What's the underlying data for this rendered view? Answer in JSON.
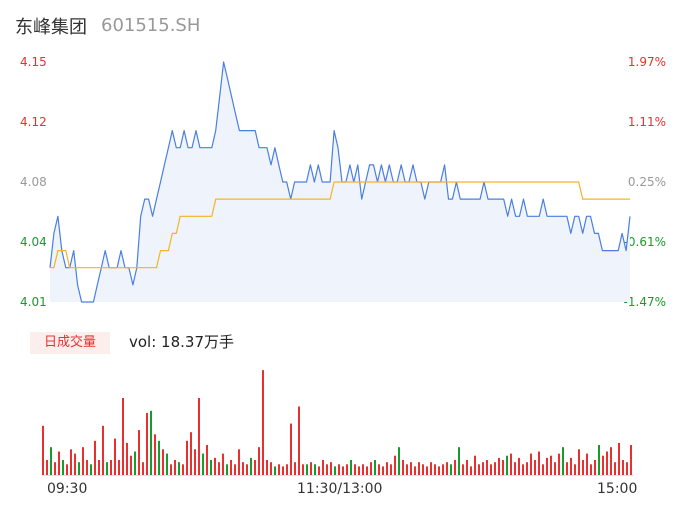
{
  "header": {
    "name": "东峰集团",
    "code": "601515.SH"
  },
  "colors": {
    "price_line": "#4a7fe0",
    "avg_line": "#f5b324",
    "up": "#e83030",
    "down": "#1a9a2a",
    "neutral": "#999999",
    "area": "#eef3fc"
  },
  "volume_panel": {
    "tag": "日成交量",
    "info": "vol: 18.37万手"
  },
  "chart_data": {
    "type": "line",
    "title": "",
    "y_left_ticks": [
      "4.15",
      "4.12",
      "4.08",
      "4.04",
      "4.01"
    ],
    "y_right_ticks": [
      "1.97%",
      "1.11%",
      "0.25%",
      "-0.61%",
      "-1.47%"
    ],
    "x_ticks": [
      "09:30",
      "11:30/13:00",
      "15:00"
    ],
    "ylim": [
      4.01,
      4.15
    ],
    "series": [
      {
        "key": "price",
        "values": [
          4.03,
          4.05,
          4.06,
          4.04,
          4.03,
          4.03,
          4.04,
          4.02,
          4.01,
          4.01,
          4.01,
          4.01,
          4.02,
          4.03,
          4.04,
          4.03,
          4.03,
          4.03,
          4.04,
          4.03,
          4.03,
          4.02,
          4.03,
          4.06,
          4.07,
          4.07,
          4.06,
          4.07,
          4.08,
          4.09,
          4.1,
          4.11,
          4.1,
          4.1,
          4.11,
          4.1,
          4.1,
          4.11,
          4.1,
          4.1,
          4.1,
          4.1,
          4.11,
          4.13,
          4.15,
          4.14,
          4.13,
          4.12,
          4.11,
          4.11,
          4.11,
          4.11,
          4.11,
          4.1,
          4.1,
          4.1,
          4.09,
          4.1,
          4.09,
          4.08,
          4.08,
          4.07,
          4.08,
          4.08,
          4.08,
          4.08,
          4.09,
          4.08,
          4.09,
          4.08,
          4.08,
          4.08,
          4.11,
          4.1,
          4.08,
          4.08,
          4.09,
          4.08,
          4.09,
          4.07,
          4.08,
          4.09,
          4.09,
          4.08,
          4.09,
          4.08,
          4.09,
          4.08,
          4.08,
          4.09,
          4.08,
          4.08,
          4.09,
          4.08,
          4.08,
          4.07,
          4.08,
          4.08,
          4.08,
          4.08,
          4.09,
          4.07,
          4.07,
          4.08,
          4.07,
          4.07,
          4.07,
          4.07,
          4.07,
          4.07,
          4.08,
          4.07,
          4.07,
          4.07,
          4.07,
          4.07,
          4.06,
          4.07,
          4.06,
          4.06,
          4.07,
          4.06,
          4.06,
          4.06,
          4.06,
          4.07,
          4.06,
          4.06,
          4.06,
          4.06,
          4.06,
          4.06,
          4.05,
          4.06,
          4.06,
          4.05,
          4.06,
          4.06,
          4.05,
          4.05,
          4.04,
          4.04,
          4.04,
          4.04,
          4.04,
          4.05,
          4.04,
          4.06
        ],
        "color": "#4a7fe0"
      },
      {
        "key": "average",
        "values": [
          4.03,
          4.03,
          4.04,
          4.04,
          4.04,
          4.03,
          4.03,
          4.03,
          4.03,
          4.03,
          4.03,
          4.03,
          4.03,
          4.03,
          4.03,
          4.03,
          4.03,
          4.03,
          4.03,
          4.03,
          4.03,
          4.03,
          4.03,
          4.03,
          4.03,
          4.03,
          4.03,
          4.03,
          4.04,
          4.04,
          4.04,
          4.05,
          4.05,
          4.06,
          4.06,
          4.06,
          4.06,
          4.06,
          4.06,
          4.06,
          4.06,
          4.06,
          4.07,
          4.07,
          4.07,
          4.07,
          4.07,
          4.07,
          4.07,
          4.07,
          4.07,
          4.07,
          4.07,
          4.07,
          4.07,
          4.07,
          4.07,
          4.07,
          4.07,
          4.07,
          4.07,
          4.07,
          4.07,
          4.07,
          4.07,
          4.07,
          4.07,
          4.07,
          4.07,
          4.07,
          4.07,
          4.07,
          4.08,
          4.08,
          4.08,
          4.08,
          4.08,
          4.08,
          4.08,
          4.08,
          4.08,
          4.08,
          4.08,
          4.08,
          4.08,
          4.08,
          4.08,
          4.08,
          4.08,
          4.08,
          4.08,
          4.08,
          4.08,
          4.08,
          4.08,
          4.08,
          4.08,
          4.08,
          4.08,
          4.08,
          4.08,
          4.08,
          4.08,
          4.08,
          4.08,
          4.08,
          4.08,
          4.08,
          4.08,
          4.08,
          4.08,
          4.08,
          4.08,
          4.08,
          4.08,
          4.08,
          4.08,
          4.08,
          4.08,
          4.08,
          4.08,
          4.08,
          4.08,
          4.08,
          4.08,
          4.08,
          4.08,
          4.08,
          4.08,
          4.08,
          4.08,
          4.08,
          4.08,
          4.08,
          4.08,
          4.07,
          4.07,
          4.07,
          4.07,
          4.07,
          4.07,
          4.07,
          4.07,
          4.07,
          4.07,
          4.07,
          4.07,
          4.07
        ],
        "color": "#f5b324"
      }
    ],
    "volume_ylim": [
      0,
      100
    ],
    "volume": [
      [
        46,
        "u"
      ],
      [
        14,
        "u"
      ],
      [
        26,
        "d"
      ],
      [
        12,
        "u"
      ],
      [
        22,
        "u"
      ],
      [
        14,
        "d"
      ],
      [
        10,
        "u"
      ],
      [
        24,
        "u"
      ],
      [
        20,
        "u"
      ],
      [
        12,
        "d"
      ],
      [
        26,
        "u"
      ],
      [
        14,
        "u"
      ],
      [
        10,
        "d"
      ],
      [
        32,
        "u"
      ],
      [
        14,
        "u"
      ],
      [
        46,
        "u"
      ],
      [
        12,
        "d"
      ],
      [
        14,
        "u"
      ],
      [
        34,
        "u"
      ],
      [
        14,
        "u"
      ],
      [
        72,
        "u"
      ],
      [
        30,
        "u"
      ],
      [
        18,
        "u"
      ],
      [
        22,
        "d"
      ],
      [
        42,
        "u"
      ],
      [
        12,
        "u"
      ],
      [
        58,
        "u"
      ],
      [
        60,
        "d"
      ],
      [
        38,
        "u"
      ],
      [
        32,
        "d"
      ],
      [
        24,
        "u"
      ],
      [
        20,
        "d"
      ],
      [
        10,
        "u"
      ],
      [
        14,
        "u"
      ],
      [
        12,
        "d"
      ],
      [
        10,
        "u"
      ],
      [
        32,
        "u"
      ],
      [
        40,
        "u"
      ],
      [
        24,
        "u"
      ],
      [
        72,
        "u"
      ],
      [
        20,
        "d"
      ],
      [
        28,
        "u"
      ],
      [
        14,
        "d"
      ],
      [
        16,
        "u"
      ],
      [
        12,
        "u"
      ],
      [
        20,
        "u"
      ],
      [
        10,
        "d"
      ],
      [
        14,
        "u"
      ],
      [
        10,
        "u"
      ],
      [
        24,
        "u"
      ],
      [
        12,
        "u"
      ],
      [
        10,
        "u"
      ],
      [
        16,
        "d"
      ],
      [
        14,
        "u"
      ],
      [
        26,
        "u"
      ],
      [
        98,
        "u"
      ],
      [
        14,
        "u"
      ],
      [
        12,
        "u"
      ],
      [
        8,
        "d"
      ],
      [
        10,
        "u"
      ],
      [
        8,
        "u"
      ],
      [
        10,
        "u"
      ],
      [
        48,
        "u"
      ],
      [
        12,
        "u"
      ],
      [
        64,
        "u"
      ],
      [
        10,
        "u"
      ],
      [
        10,
        "d"
      ],
      [
        12,
        "u"
      ],
      [
        10,
        "d"
      ],
      [
        8,
        "u"
      ],
      [
        14,
        "u"
      ],
      [
        10,
        "u"
      ],
      [
        12,
        "u"
      ],
      [
        8,
        "d"
      ],
      [
        10,
        "u"
      ],
      [
        8,
        "u"
      ],
      [
        10,
        "u"
      ],
      [
        14,
        "d"
      ],
      [
        10,
        "u"
      ],
      [
        8,
        "u"
      ],
      [
        10,
        "u"
      ],
      [
        8,
        "u"
      ],
      [
        12,
        "u"
      ],
      [
        14,
        "d"
      ],
      [
        10,
        "u"
      ],
      [
        8,
        "u"
      ],
      [
        12,
        "u"
      ],
      [
        10,
        "u"
      ],
      [
        18,
        "u"
      ],
      [
        26,
        "d"
      ],
      [
        14,
        "u"
      ],
      [
        10,
        "u"
      ],
      [
        12,
        "u"
      ],
      [
        8,
        "u"
      ],
      [
        12,
        "u"
      ],
      [
        10,
        "u"
      ],
      [
        8,
        "u"
      ],
      [
        12,
        "u"
      ],
      [
        10,
        "u"
      ],
      [
        8,
        "u"
      ],
      [
        10,
        "u"
      ],
      [
        12,
        "u"
      ],
      [
        10,
        "d"
      ],
      [
        14,
        "u"
      ],
      [
        26,
        "d"
      ],
      [
        10,
        "u"
      ],
      [
        14,
        "u"
      ],
      [
        8,
        "u"
      ],
      [
        18,
        "u"
      ],
      [
        10,
        "u"
      ],
      [
        12,
        "u"
      ],
      [
        14,
        "u"
      ],
      [
        10,
        "u"
      ],
      [
        12,
        "u"
      ],
      [
        16,
        "u"
      ],
      [
        14,
        "u"
      ],
      [
        18,
        "d"
      ],
      [
        20,
        "u"
      ],
      [
        12,
        "u"
      ],
      [
        16,
        "u"
      ],
      [
        10,
        "u"
      ],
      [
        12,
        "u"
      ],
      [
        20,
        "u"
      ],
      [
        14,
        "u"
      ],
      [
        22,
        "u"
      ],
      [
        10,
        "u"
      ],
      [
        16,
        "u"
      ],
      [
        18,
        "u"
      ],
      [
        12,
        "u"
      ],
      [
        20,
        "u"
      ],
      [
        26,
        "d"
      ],
      [
        12,
        "u"
      ],
      [
        16,
        "u"
      ],
      [
        10,
        "u"
      ],
      [
        24,
        "u"
      ],
      [
        14,
        "u"
      ],
      [
        20,
        "u"
      ],
      [
        10,
        "u"
      ],
      [
        14,
        "u"
      ],
      [
        28,
        "d"
      ],
      [
        18,
        "u"
      ],
      [
        22,
        "u"
      ],
      [
        26,
        "u"
      ],
      [
        12,
        "u"
      ],
      [
        30,
        "u"
      ],
      [
        14,
        "u"
      ],
      [
        12,
        "u"
      ],
      [
        28,
        "u"
      ]
    ]
  }
}
